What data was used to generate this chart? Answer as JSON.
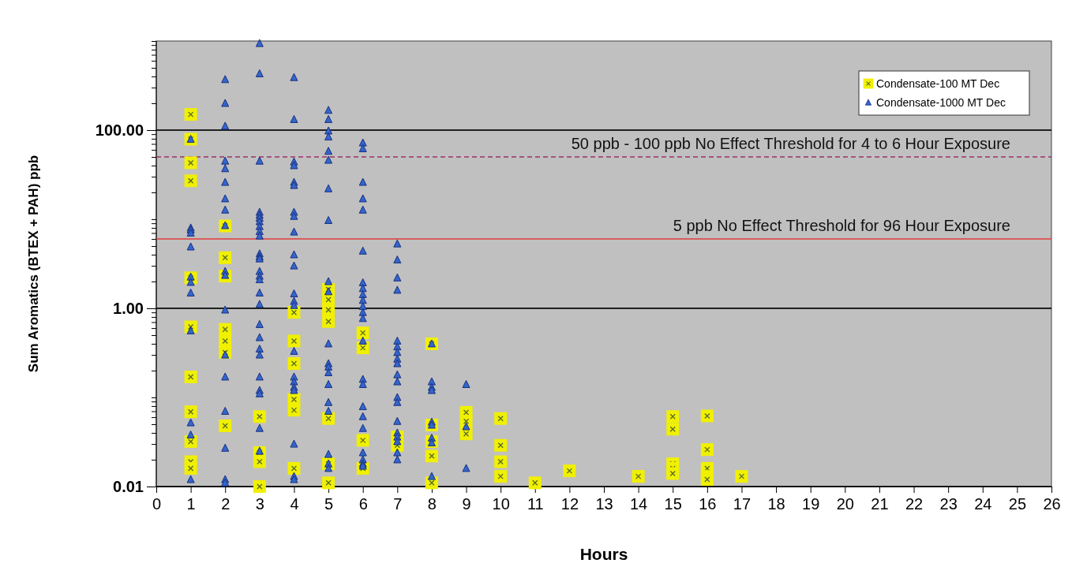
{
  "chart_data": {
    "type": "scatter",
    "xlabel": "Hours",
    "ylabel": "Sum Aromatics (BTEX + PAH) ppb",
    "log": "y",
    "grid": "y",
    "legend": "top right",
    "xlim": [
      0,
      26
    ],
    "xticks": [
      0,
      1,
      2,
      3,
      4,
      5,
      6,
      7,
      8,
      9,
      10,
      11,
      12,
      13,
      14,
      15,
      16,
      17,
      18,
      19,
      20,
      21,
      22,
      23,
      24,
      25,
      26
    ],
    "ylim": [
      0.01,
      1000
    ],
    "yticks": [
      {
        "value": 0.01,
        "label": "0.01"
      },
      {
        "value": 0.02,
        "label": null
      },
      {
        "value": 0.03,
        "label": null
      },
      {
        "value": 0.04,
        "label": null
      },
      {
        "value": 0.05,
        "label": null
      },
      {
        "value": 0.06,
        "label": null
      },
      {
        "value": 0.07,
        "label": null
      },
      {
        "value": 0.08,
        "label": null
      },
      {
        "value": 0.09,
        "label": null
      },
      {
        "value": 0.1,
        "label": null
      },
      {
        "value": 0.2,
        "label": null
      },
      {
        "value": 0.3,
        "label": null
      },
      {
        "value": 0.4,
        "label": null
      },
      {
        "value": 0.5,
        "label": null
      },
      {
        "value": 0.6,
        "label": null
      },
      {
        "value": 0.7,
        "label": null
      },
      {
        "value": 0.8,
        "label": null
      },
      {
        "value": 0.9,
        "label": null
      },
      {
        "value": 1,
        "label": "1.00"
      },
      {
        "value": 2,
        "label": null
      },
      {
        "value": 3,
        "label": null
      },
      {
        "value": 4,
        "label": null
      },
      {
        "value": 5,
        "label": null
      },
      {
        "value": 6,
        "label": null
      },
      {
        "value": 7,
        "label": null
      },
      {
        "value": 8,
        "label": null
      },
      {
        "value": 9,
        "label": null
      },
      {
        "value": 10,
        "label": null
      },
      {
        "value": 20,
        "label": null
      },
      {
        "value": 30,
        "label": null
      },
      {
        "value": 40,
        "label": null
      },
      {
        "value": 50,
        "label": null
      },
      {
        "value": 60,
        "label": null
      },
      {
        "value": 70,
        "label": null
      },
      {
        "value": 80,
        "label": null
      },
      {
        "value": 90,
        "label": null
      },
      {
        "value": 100,
        "label": "100.00"
      },
      {
        "value": 200,
        "label": null
      },
      {
        "value": 300,
        "label": null
      },
      {
        "value": 400,
        "label": null
      },
      {
        "value": 500,
        "label": null
      },
      {
        "value": 600,
        "label": null
      },
      {
        "value": 700,
        "label": null
      },
      {
        "value": 800,
        "label": null
      },
      {
        "value": 900,
        "label": null
      },
      {
        "value": 1000,
        "label": null
      }
    ],
    "ref_lines": [
      {
        "axis": "y",
        "value": 50,
        "label": "50 ppb - 100 ppb No Effect Threshold for 4 to 6 Hour Exposure",
        "color": "#993366",
        "line_style": "dashed"
      },
      {
        "axis": "y",
        "value": 6,
        "label": "5 ppb No Effect Threshold for 96 Hour Exposure",
        "color": "#e03c3c",
        "line_style": "solid"
      }
    ],
    "series": [
      {
        "name": "Condensate-100 MT Dec",
        "color": "#f0f000",
        "marker": "square",
        "x": [
          1,
          1,
          1,
          1,
          1,
          1,
          1,
          1,
          1,
          1,
          1,
          2,
          2,
          2,
          2,
          2,
          2,
          2,
          3,
          3,
          3,
          3,
          4,
          4,
          4,
          4,
          4,
          4,
          5,
          5,
          5,
          5,
          5,
          5,
          5,
          6,
          6,
          6,
          6,
          7,
          7,
          8,
          8,
          8,
          8,
          8,
          9,
          9,
          9,
          10,
          10,
          10,
          10,
          11,
          12,
          14,
          15,
          15,
          15,
          15,
          15,
          16,
          16,
          16,
          16,
          16,
          17
        ],
        "values": [
          150,
          79,
          43,
          27,
          2.2,
          0.62,
          0.17,
          0.069,
          0.032,
          0.019,
          0.016,
          8.4,
          3.7,
          2.3,
          0.58,
          0.43,
          0.32,
          0.048,
          0.061,
          0.024,
          0.019,
          0.01,
          0.9,
          0.43,
          0.24,
          0.095,
          0.072,
          0.016,
          1.63,
          1.25,
          0.96,
          0.71,
          0.058,
          0.018,
          0.011,
          0.53,
          0.36,
          0.033,
          0.016,
          0.036,
          0.029,
          0.4,
          0.049,
          0.032,
          0.022,
          0.011,
          0.068,
          0.054,
          0.039,
          0.058,
          0.029,
          0.019,
          0.013,
          0.011,
          0.015,
          0.013,
          0.061,
          0.044,
          0.018,
          0.016,
          0.014,
          0.062,
          0.026,
          0.016,
          0.013,
          0.012,
          0.013
        ]
      },
      {
        "name": "Condensate-1000 MT Dec",
        "color": "#3366cc",
        "marker": "triangle",
        "x": [
          1,
          1,
          1,
          1,
          1,
          1,
          1,
          1,
          1,
          1,
          1,
          1,
          2,
          2,
          2,
          2,
          2,
          2,
          2,
          2,
          2,
          2,
          2,
          2,
          2,
          2,
          2,
          2,
          2,
          2,
          3,
          3,
          3,
          3,
          3,
          3,
          3,
          3,
          3,
          3,
          3,
          3,
          3,
          3,
          3,
          3,
          3,
          3,
          3,
          3,
          3,
          3,
          3,
          3,
          3,
          3,
          3,
          4,
          4,
          4,
          4,
          4,
          4,
          4,
          4,
          4,
          4,
          4,
          4,
          4,
          4,
          4,
          4,
          4,
          4,
          4,
          4,
          4,
          4,
          5,
          5,
          5,
          5,
          5,
          5,
          5,
          5,
          5,
          5,
          5,
          5,
          5,
          5,
          5,
          5,
          5,
          5,
          5,
          5,
          6,
          6,
          6,
          6,
          6,
          6,
          6,
          6,
          6,
          6,
          6,
          6,
          6,
          6,
          6,
          6,
          6,
          6,
          6,
          6,
          6,
          6,
          6,
          7,
          7,
          7,
          7,
          7,
          7,
          7,
          7,
          7,
          7,
          7,
          7,
          7,
          7,
          7,
          7,
          7,
          7,
          7,
          8,
          8,
          8,
          8,
          8,
          8,
          8,
          8,
          8,
          9,
          9,
          9
        ],
        "values": [
          79,
          8,
          7.6,
          7,
          4.9,
          2.25,
          1.96,
          1.49,
          0.56,
          0.052,
          0.038,
          0.012,
          370,
          200,
          111,
          45,
          37,
          26,
          17,
          12.7,
          8.5,
          2.6,
          2.35,
          0.96,
          0.3,
          0.17,
          0.07,
          0.027,
          0.012,
          0.011,
          940,
          430,
          45,
          12,
          11.1,
          10.3,
          9.4,
          8.3,
          7.3,
          6.5,
          4.1,
          3.8,
          3.6,
          2.6,
          2.3,
          2.1,
          1.49,
          1.11,
          0.66,
          0.47,
          0.35,
          0.3,
          0.17,
          0.12,
          0.11,
          0.045,
          0.025,
          390,
          132,
          44,
          40,
          26,
          24,
          12,
          10.8,
          7.2,
          4,
          3,
          1.46,
          1.2,
          1.08,
          0.33,
          0.17,
          0.15,
          0.13,
          0.12,
          0.03,
          0.013,
          0.012,
          167,
          132,
          98,
          84,
          58,
          46,
          22,
          9.7,
          2,
          1.54,
          0.4,
          0.24,
          0.22,
          0.19,
          0.14,
          0.088,
          0.07,
          0.023,
          0.018,
          0.016,
          72,
          62,
          26,
          17,
          12.7,
          4.4,
          1.94,
          1.67,
          1.43,
          1.23,
          1.05,
          0.9,
          0.77,
          0.43,
          0.16,
          0.14,
          0.079,
          0.061,
          0.045,
          0.024,
          0.02,
          0.018,
          0.017,
          5.3,
          3.5,
          2.2,
          1.6,
          0.43,
          0.37,
          0.32,
          0.27,
          0.24,
          0.18,
          0.15,
          0.1,
          0.088,
          0.054,
          0.04,
          0.036,
          0.032,
          0.024,
          0.02,
          0.4,
          0.15,
          0.13,
          0.12,
          0.053,
          0.049,
          0.035,
          0.031,
          0.013,
          0.14,
          0.047,
          0.016
        ]
      }
    ]
  }
}
